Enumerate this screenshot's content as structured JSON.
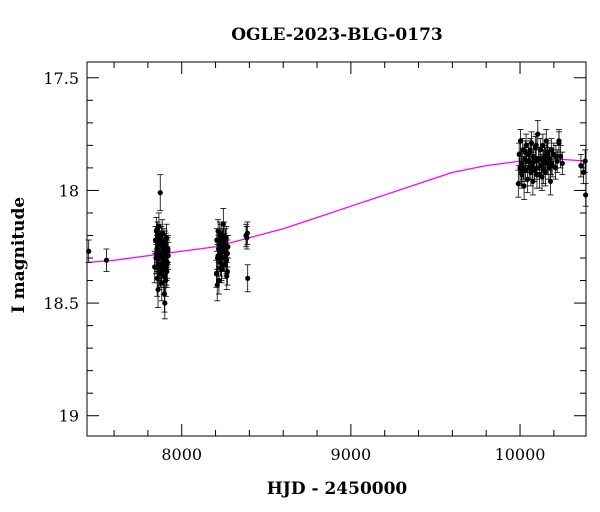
{
  "chart_data": {
    "type": "scatter",
    "title": "OGLE-2023-BLG-0173",
    "xlabel": "HJD - 2450000",
    "ylabel": "I magnitude",
    "xlim": [
      7440,
      10390
    ],
    "ylim": [
      19.09,
      17.43
    ],
    "y_inverted": true,
    "x_ticks": [
      8000,
      9000,
      10000
    ],
    "y_ticks": [
      17.5,
      18,
      18.5,
      19
    ],
    "y_tick_labels": [
      "17.5",
      "18",
      "18.5",
      "19"
    ],
    "grid": false,
    "colors": {
      "points": "#000000",
      "model": "#ff00ff"
    },
    "series": [
      {
        "kind": "points_with_errorbars",
        "x": [
          7450,
          7555,
          7840,
          7845,
          7848,
          7850,
          7853,
          7855,
          7858,
          7860,
          7862,
          7865,
          7868,
          7870,
          7873,
          7875,
          7878,
          7880,
          7882,
          7885,
          7888,
          7890,
          7893,
          7895,
          7898,
          7900,
          7903,
          7905,
          7908,
          7910,
          7913,
          7915,
          7918,
          7920,
          7860,
          7870,
          7880,
          7890,
          7900,
          7910,
          7852,
          7866,
          7884,
          7896,
          7906,
          7918,
          7880,
          7856,
          7894,
          7912,
          8205,
          8208,
          8212,
          8215,
          8218,
          8220,
          8223,
          8226,
          8230,
          8233,
          8236,
          8240,
          8243,
          8246,
          8250,
          8253,
          8256,
          8260,
          8263,
          8266,
          8270,
          8273,
          8215,
          8225,
          8235,
          8245,
          8255,
          8265,
          8210,
          8230,
          8250,
          8270,
          8240,
          8228,
          8258,
          8380,
          8385,
          8390,
          8388,
          9990,
          9995,
          10000,
          10003,
          10008,
          10012,
          10016,
          10020,
          10024,
          10028,
          10032,
          10036,
          10040,
          10045,
          10050,
          10055,
          10060,
          10064,
          10068,
          10072,
          10076,
          10080,
          10085,
          10090,
          10095,
          10100,
          10105,
          10110,
          10115,
          10120,
          10125,
          10130,
          10135,
          10140,
          10145,
          10150,
          10155,
          10160,
          10165,
          10170,
          10175,
          10180,
          10185,
          10190,
          10200,
          10210,
          10220,
          10230,
          10240,
          10250,
          10008,
          10030,
          10052,
          10074,
          10096,
          10118,
          10140,
          10162,
          10184,
          10212,
          10060,
          10100,
          10150,
          10230,
          10360,
          10375,
          10385,
          10388
        ],
        "y": [
          18.27,
          18.31,
          18.34,
          18.22,
          18.3,
          18.18,
          18.26,
          18.39,
          18.2,
          18.44,
          18.28,
          18.16,
          18.33,
          18.24,
          18.01,
          18.36,
          18.29,
          18.22,
          18.41,
          18.19,
          18.27,
          18.31,
          18.38,
          18.23,
          18.46,
          18.5,
          18.3,
          18.25,
          18.35,
          18.21,
          18.28,
          18.32,
          18.26,
          18.29,
          18.3,
          18.21,
          18.35,
          18.27,
          18.24,
          18.33,
          18.29,
          18.37,
          18.25,
          18.31,
          18.4,
          18.27,
          18.33,
          18.23,
          18.28,
          18.36,
          18.37,
          18.22,
          18.3,
          18.18,
          18.26,
          18.4,
          18.24,
          18.28,
          18.32,
          18.2,
          18.35,
          18.22,
          18.27,
          18.15,
          18.3,
          18.24,
          18.33,
          18.26,
          18.21,
          18.38,
          18.28,
          18.25,
          18.29,
          18.19,
          18.34,
          18.23,
          18.27,
          18.31,
          18.42,
          18.25,
          18.2,
          18.36,
          18.24,
          18.28,
          18.22,
          18.2,
          18.21,
          18.39,
          18.19,
          17.97,
          17.84,
          17.9,
          17.78,
          17.88,
          17.93,
          17.82,
          17.9,
          17.98,
          17.86,
          17.91,
          17.8,
          17.87,
          17.95,
          17.84,
          17.9,
          17.83,
          17.92,
          17.79,
          17.88,
          17.96,
          17.85,
          17.91,
          17.81,
          17.87,
          17.9,
          17.75,
          17.86,
          17.93,
          17.82,
          17.89,
          17.94,
          17.8,
          17.87,
          17.85,
          17.92,
          17.78,
          17.88,
          17.83,
          17.9,
          17.86,
          17.96,
          17.82,
          17.89,
          17.84,
          17.9,
          17.87,
          17.79,
          17.85,
          17.88,
          17.92,
          17.83,
          17.87,
          17.9,
          17.8,
          17.86,
          17.91,
          17.84,
          17.88,
          17.85,
          17.82,
          17.93,
          17.86,
          17.78,
          17.89,
          17.92,
          17.87,
          18.02
        ],
        "errors": [
          0.05,
          0.05,
          0.07,
          0.06,
          0.07,
          0.06,
          0.06,
          0.08,
          0.06,
          0.08,
          0.07,
          0.06,
          0.07,
          0.06,
          0.08,
          0.07,
          0.06,
          0.06,
          0.08,
          0.06,
          0.07,
          0.06,
          0.08,
          0.06,
          0.08,
          0.07,
          0.06,
          0.06,
          0.07,
          0.06,
          0.06,
          0.07,
          0.06,
          0.06,
          0.06,
          0.06,
          0.07,
          0.06,
          0.06,
          0.07,
          0.06,
          0.07,
          0.06,
          0.06,
          0.07,
          0.06,
          0.06,
          0.06,
          0.06,
          0.07,
          0.06,
          0.05,
          0.06,
          0.05,
          0.06,
          0.06,
          0.05,
          0.06,
          0.06,
          0.05,
          0.06,
          0.05,
          0.06,
          0.07,
          0.06,
          0.05,
          0.06,
          0.06,
          0.05,
          0.06,
          0.06,
          0.05,
          0.06,
          0.05,
          0.06,
          0.05,
          0.06,
          0.06,
          0.07,
          0.05,
          0.06,
          0.06,
          0.05,
          0.06,
          0.05,
          0.05,
          0.05,
          0.06,
          0.05,
          0.06,
          0.05,
          0.06,
          0.05,
          0.05,
          0.06,
          0.05,
          0.05,
          0.06,
          0.05,
          0.05,
          0.05,
          0.05,
          0.06,
          0.05,
          0.05,
          0.05,
          0.06,
          0.05,
          0.05,
          0.06,
          0.05,
          0.05,
          0.05,
          0.05,
          0.05,
          0.06,
          0.05,
          0.06,
          0.05,
          0.05,
          0.06,
          0.05,
          0.05,
          0.05,
          0.06,
          0.05,
          0.05,
          0.05,
          0.05,
          0.05,
          0.06,
          0.05,
          0.05,
          0.05,
          0.05,
          0.05,
          0.05,
          0.05,
          0.05,
          0.06,
          0.05,
          0.05,
          0.05,
          0.05,
          0.05,
          0.06,
          0.05,
          0.05,
          0.05,
          0.05,
          0.06,
          0.05,
          0.05,
          0.05,
          0.05,
          0.05,
          0.05
        ]
      },
      {
        "kind": "model_curve",
        "x": [
          7440,
          7600,
          7800,
          8000,
          8200,
          8400,
          8600,
          8800,
          9000,
          9200,
          9400,
          9600,
          9800,
          10000,
          10100,
          10200,
          10300,
          10390
        ],
        "y": [
          18.32,
          18.31,
          18.29,
          18.27,
          18.25,
          18.21,
          18.17,
          18.12,
          18.07,
          18.02,
          17.97,
          17.92,
          17.89,
          17.87,
          17.865,
          17.86,
          17.865,
          17.87
        ]
      }
    ]
  }
}
